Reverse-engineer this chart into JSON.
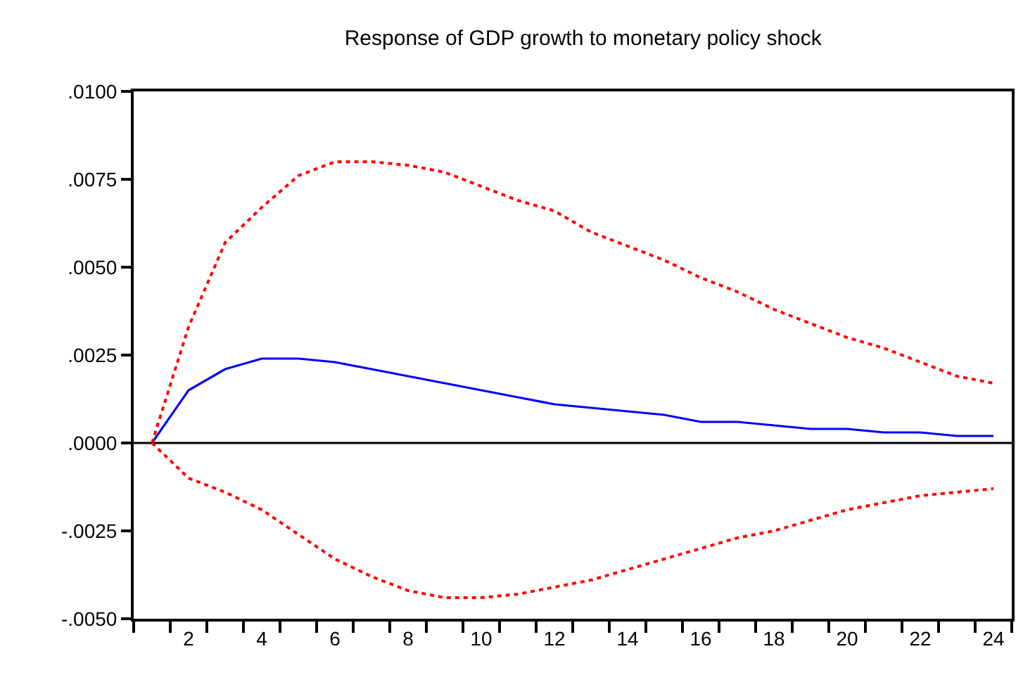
{
  "chart_data": {
    "type": "line",
    "title": "Response of GDP growth to monetary policy shock",
    "x": [
      1,
      2,
      3,
      4,
      5,
      6,
      7,
      8,
      9,
      10,
      11,
      12,
      13,
      14,
      15,
      16,
      17,
      18,
      19,
      20,
      21,
      22,
      23,
      24
    ],
    "series": [
      {
        "color": "#0000ff",
        "line_style": "solid",
        "values": [
          0,
          0.0015,
          0.0021,
          0.0024,
          0.0024,
          0.0023,
          0.0021,
          0.0019,
          0.0017,
          0.0015,
          0.0013,
          0.0011,
          0.001,
          0.0009,
          0.0008,
          0.0006,
          0.0006,
          0.0005,
          0.0004,
          0.0004,
          0.0003,
          0.0003,
          0.0002,
          0.0002
        ]
      },
      {
        "color": "#ff0000",
        "line_style": "dotted",
        "values": [
          0,
          0.0033,
          0.0057,
          0.0067,
          0.0076,
          0.008,
          0.008,
          0.0079,
          0.0077,
          0.0073,
          0.0069,
          0.0066,
          0.006,
          0.0056,
          0.0052,
          0.0047,
          0.0043,
          0.0038,
          0.0034,
          0.003,
          0.0027,
          0.0023,
          0.0019,
          0.0017
        ]
      },
      {
        "color": "#ff0000",
        "line_style": "dotted",
        "values": [
          0,
          -0.001,
          -0.0014,
          -0.0019,
          -0.0026,
          -0.0033,
          -0.0038,
          -0.0042,
          -0.0044,
          -0.0044,
          -0.0043,
          -0.0041,
          -0.0039,
          -0.0036,
          -0.0033,
          -0.003,
          -0.0027,
          -0.0025,
          -0.0022,
          -0.0019,
          -0.0017,
          -0.0015,
          -0.0014,
          -0.0013
        ]
      }
    ],
    "xlim": [
      0.5,
      24.5
    ],
    "xticks": [
      {
        "value": 0.5,
        "label": null
      },
      {
        "value": 1.5,
        "label": null
      },
      {
        "value": 2,
        "label": "2"
      },
      {
        "value": 2.5,
        "label": null
      },
      {
        "value": 3.5,
        "label": null
      },
      {
        "value": 4,
        "label": "4"
      },
      {
        "value": 4.5,
        "label": null
      },
      {
        "value": 5.5,
        "label": null
      },
      {
        "value": 6,
        "label": "6"
      },
      {
        "value": 6.5,
        "label": null
      },
      {
        "value": 7.5,
        "label": null
      },
      {
        "value": 8,
        "label": "8"
      },
      {
        "value": 8.5,
        "label": null
      },
      {
        "value": 9.5,
        "label": null
      },
      {
        "value": 10,
        "label": "10"
      },
      {
        "value": 10.5,
        "label": null
      },
      {
        "value": 11.5,
        "label": null
      },
      {
        "value": 12,
        "label": "12"
      },
      {
        "value": 12.5,
        "label": null
      },
      {
        "value": 13.5,
        "label": null
      },
      {
        "value": 14,
        "label": "14"
      },
      {
        "value": 14.5,
        "label": null
      },
      {
        "value": 15.5,
        "label": null
      },
      {
        "value": 16,
        "label": "16"
      },
      {
        "value": 16.5,
        "label": null
      },
      {
        "value": 17.5,
        "label": null
      },
      {
        "value": 18,
        "label": "18"
      },
      {
        "value": 18.5,
        "label": null
      },
      {
        "value": 19.5,
        "label": null
      },
      {
        "value": 20,
        "label": "20"
      },
      {
        "value": 20.5,
        "label": null
      },
      {
        "value": 21.5,
        "label": null
      },
      {
        "value": 22,
        "label": "22"
      },
      {
        "value": 22.5,
        "label": null
      },
      {
        "value": 23.5,
        "label": null
      },
      {
        "value": 24,
        "label": "24"
      },
      {
        "value": 24.5,
        "label": null
      }
    ],
    "ylim": [
      -0.005,
      0.01
    ],
    "yticks": [
      {
        "value": -0.005,
        "label": "-.0050"
      },
      {
        "value": -0.0025,
        "label": "-.0025"
      },
      {
        "value": 0,
        "label": ".0000"
      },
      {
        "value": 0.0025,
        "label": ".0025"
      },
      {
        "value": 0.005,
        "label": ".0050"
      },
      {
        "value": 0.0075,
        "label": ".0075"
      },
      {
        "value": 0.01,
        "label": ".0100"
      }
    ],
    "ref_lines": [
      {
        "axis": "y",
        "value": 0,
        "color": "#000000",
        "line_style": "solid"
      }
    ],
    "grid": false,
    "marker": "none"
  }
}
